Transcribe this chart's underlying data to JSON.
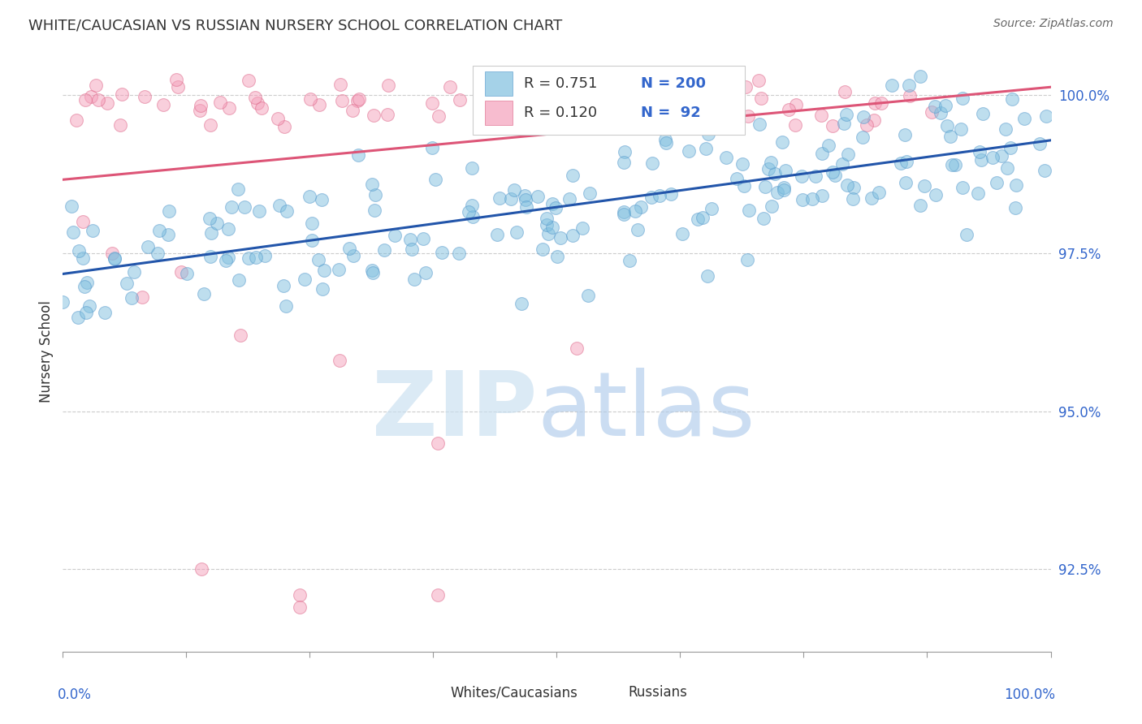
{
  "title": "WHITE/CAUCASIAN VS RUSSIAN NURSERY SCHOOL CORRELATION CHART",
  "source": "Source: ZipAtlas.com",
  "ylabel": "Nursery School",
  "ytick_values": [
    1.0,
    0.975,
    0.95,
    0.925
  ],
  "xrange": [
    0.0,
    1.0
  ],
  "yrange": [
    0.912,
    1.007
  ],
  "blue_color": "#7fbfdf",
  "blue_edge_color": "#5599cc",
  "blue_line_color": "#2255aa",
  "pink_color": "#f5a0bb",
  "pink_edge_color": "#dd6688",
  "pink_line_color": "#dd5577",
  "legend_text_color": "#3366cc",
  "legend_R_blue": "0.751",
  "legend_N_blue": "200",
  "legend_R_pink": "0.120",
  "legend_N_pink": "92",
  "title_color": "#333333",
  "source_color": "#666666",
  "axis_label_color": "#333333",
  "grid_color": "#cccccc",
  "tick_color": "#999999",
  "blue_seed": 12345,
  "pink_seed": 9999
}
